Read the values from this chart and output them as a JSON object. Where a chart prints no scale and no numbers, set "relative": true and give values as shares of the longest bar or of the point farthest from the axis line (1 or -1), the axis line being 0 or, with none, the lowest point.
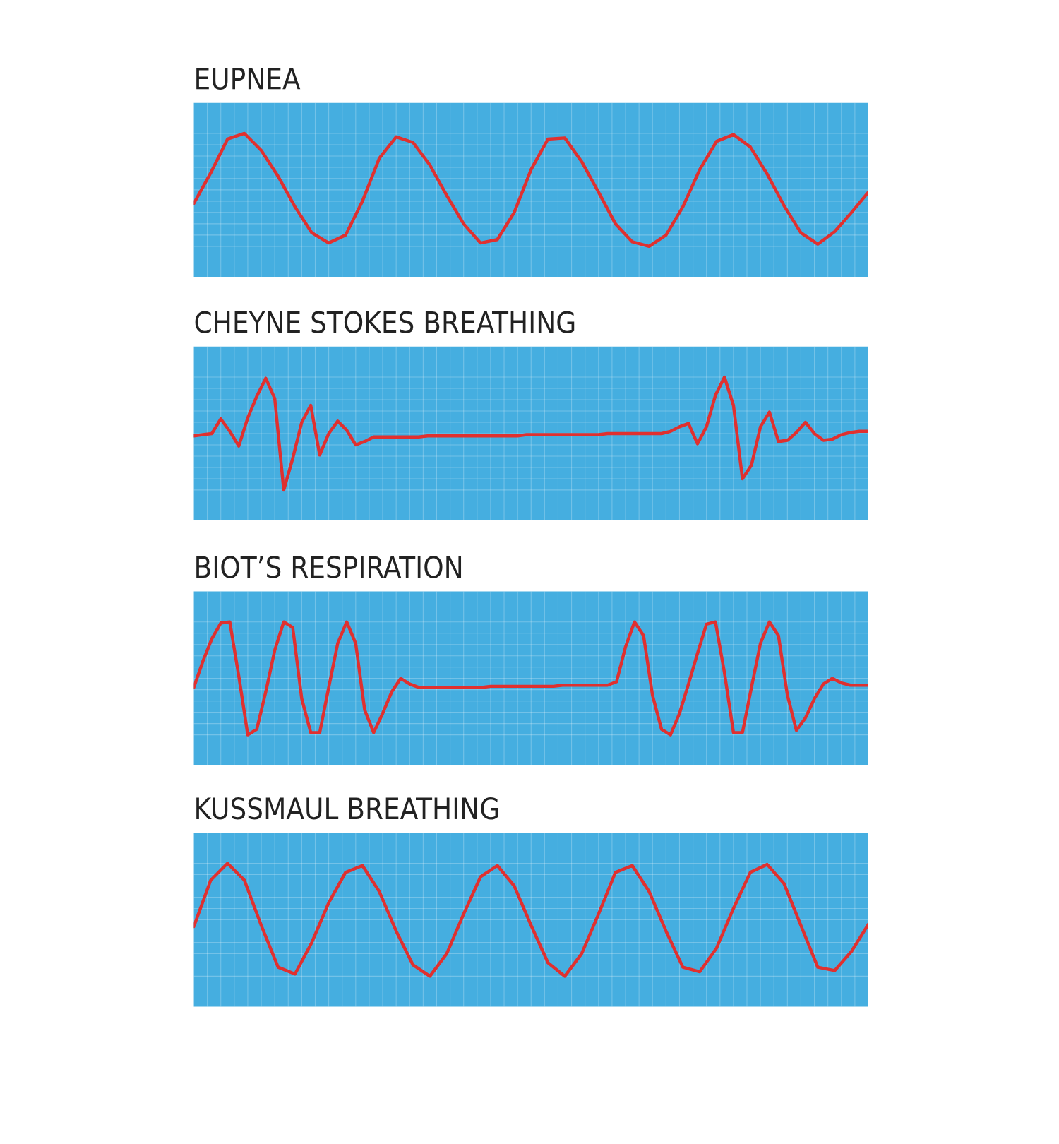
{
  "chart_data": [
    {
      "type": "line",
      "title": "EUPNEA",
      "relative": true,
      "grid": true,
      "tick_labels": false,
      "categories": [
        null,
        null,
        null,
        null,
        null,
        null,
        null,
        null,
        null,
        null,
        null,
        null,
        null,
        null,
        null,
        null,
        null,
        null,
        null,
        null,
        null,
        null,
        null,
        null,
        null,
        null,
        null,
        null,
        null,
        null,
        null,
        null,
        null,
        null,
        null,
        null,
        null,
        null,
        null,
        null,
        null
      ],
      "series": [
        {
          "color": "#e0302f",
          "values": [
            0.38,
            0.65,
            0.95,
            1.0,
            0.85,
            0.62,
            0.35,
            0.12,
            0.03,
            0.1,
            0.4,
            0.78,
            0.97,
            0.92,
            0.72,
            0.45,
            0.2,
            0.03,
            0.06,
            0.3,
            0.68,
            0.95,
            0.96,
            0.75,
            0.48,
            0.2,
            0.04,
            0.0,
            0.1,
            0.35,
            0.68,
            0.93,
            0.99,
            0.88,
            0.64,
            0.36,
            0.12,
            0.02,
            0.13,
            0.3,
            0.48
          ]
        }
      ]
    },
    {
      "type": "line",
      "title": "CHEYNE STOKES BREATHING",
      "relative": true,
      "grid": true,
      "tick_labels": false,
      "categories": [
        null,
        null,
        null,
        null,
        null,
        null,
        null,
        null,
        null,
        null,
        null,
        null,
        null,
        null,
        null,
        null,
        null,
        null,
        null,
        null,
        null,
        null,
        null,
        null,
        null,
        null,
        null,
        null,
        null,
        null,
        null,
        null,
        null,
        null,
        null,
        null,
        null,
        null,
        null,
        null,
        null,
        null,
        null,
        null,
        null,
        null,
        null,
        null,
        null,
        null,
        null,
        null,
        null,
        null,
        null,
        null,
        null,
        null,
        null,
        null,
        null,
        null,
        null,
        null,
        null,
        null,
        null,
        null,
        null,
        null,
        null,
        null,
        null,
        null,
        null,
        null
      ],
      "series": [
        {
          "color": "#e0302f",
          "values": [
            0.48,
            0.49,
            0.5,
            0.63,
            0.52,
            0.39,
            0.64,
            0.83,
            0.99,
            0.81,
            0.0,
            0.28,
            0.6,
            0.75,
            0.31,
            0.5,
            0.61,
            0.53,
            0.4,
            0.43,
            0.47,
            0.47,
            0.47,
            0.47,
            0.47,
            0.47,
            0.48,
            0.48,
            0.48,
            0.48,
            0.48,
            0.48,
            0.48,
            0.48,
            0.48,
            0.48,
            0.48,
            0.49,
            0.49,
            0.49,
            0.49,
            0.49,
            0.49,
            0.49,
            0.49,
            0.49,
            0.5,
            0.5,
            0.5,
            0.5,
            0.5,
            0.5,
            0.5,
            0.52,
            0.56,
            0.59,
            0.41,
            0.56,
            0.84,
            1.0,
            0.75,
            0.1,
            0.22,
            0.56,
            0.69,
            0.43,
            0.44,
            0.51,
            0.6,
            0.5,
            0.44,
            0.45,
            0.49,
            0.51,
            0.52,
            0.52
          ]
        }
      ]
    },
    {
      "type": "line",
      "title": "BIOT’S RESPIRATION",
      "relative": true,
      "grid": true,
      "tick_labels": false,
      "categories": [
        null,
        null,
        null,
        null,
        null,
        null,
        null,
        null,
        null,
        null,
        null,
        null,
        null,
        null,
        null,
        null,
        null,
        null,
        null,
        null,
        null,
        null,
        null,
        null,
        null,
        null,
        null,
        null,
        null,
        null,
        null,
        null,
        null,
        null,
        null,
        null,
        null,
        null,
        null,
        null,
        null,
        null,
        null,
        null,
        null,
        null,
        null,
        null,
        null,
        null,
        null,
        null,
        null,
        null,
        null,
        null,
        null,
        null,
        null,
        null,
        null,
        null,
        null,
        null,
        null,
        null,
        null,
        null,
        null,
        null,
        null,
        null,
        null,
        null,
        null,
        null
      ],
      "series": [
        {
          "color": "#e0302f",
          "values": [
            0.42,
            0.65,
            0.85,
            0.99,
            1.0,
            0.52,
            0.0,
            0.05,
            0.38,
            0.75,
            1.0,
            0.95,
            0.32,
            0.02,
            0.02,
            0.42,
            0.81,
            1.0,
            0.81,
            0.22,
            0.02,
            0.19,
            0.38,
            0.5,
            0.45,
            0.42,
            0.42,
            0.42,
            0.42,
            0.42,
            0.42,
            0.42,
            0.42,
            0.43,
            0.43,
            0.43,
            0.43,
            0.43,
            0.43,
            0.43,
            0.43,
            0.44,
            0.44,
            0.44,
            0.44,
            0.44,
            0.44,
            0.47,
            0.78,
            1.0,
            0.88,
            0.35,
            0.05,
            0.0,
            0.19,
            0.45,
            0.72,
            0.98,
            1.0,
            0.55,
            0.02,
            0.02,
            0.42,
            0.81,
            1.0,
            0.88,
            0.35,
            0.04,
            0.15,
            0.32,
            0.45,
            0.5,
            0.46,
            0.44,
            0.44,
            0.44
          ]
        }
      ]
    },
    {
      "type": "line",
      "title": "KUSSMAUL BREATHING",
      "relative": true,
      "grid": true,
      "tick_labels": false,
      "categories": [
        null,
        null,
        null,
        null,
        null,
        null,
        null,
        null,
        null,
        null,
        null,
        null,
        null,
        null,
        null,
        null,
        null,
        null,
        null,
        null,
        null,
        null,
        null,
        null,
        null,
        null,
        null,
        null,
        null,
        null,
        null,
        null,
        null,
        null,
        null,
        null,
        null,
        null,
        null,
        null,
        null
      ],
      "series": [
        {
          "color": "#e0302f",
          "values": [
            0.44,
            0.85,
            1.0,
            0.85,
            0.45,
            0.08,
            0.02,
            0.3,
            0.65,
            0.92,
            0.98,
            0.75,
            0.4,
            0.1,
            0.0,
            0.2,
            0.55,
            0.88,
            0.98,
            0.8,
            0.45,
            0.12,
            0.0,
            0.2,
            0.55,
            0.92,
            0.98,
            0.75,
            0.4,
            0.08,
            0.04,
            0.25,
            0.6,
            0.92,
            0.99,
            0.82,
            0.45,
            0.08,
            0.05,
            0.22,
            0.46
          ]
        }
      ]
    }
  ]
}
